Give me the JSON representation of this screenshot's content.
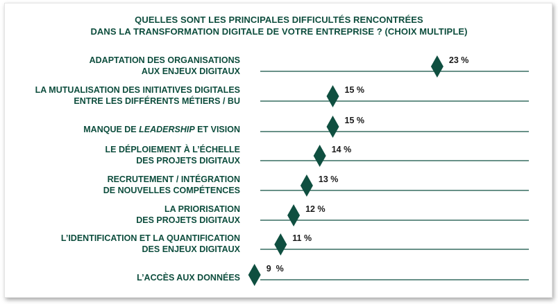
{
  "chart_data": {
    "type": "dot",
    "title_lines": [
      "QUELLES SONT LES PRINCIPALES DIFFICULTÉS RENCONTRÉES",
      "DANS LA TRANSFORMATION DIGITALE DE VOTRE ENTREPRISE ? (CHOIX MULTIPLE)"
    ],
    "categories": [
      [
        "ADAPTATION DES ORGANISATIONS",
        "AUX ENJEUX DIGITAUX"
      ],
      [
        "LA MUTUALISATION DES INITIATIVES DIGITALES",
        "ENTRE LES DIFFÉRENTS MÉTIERS / BU"
      ],
      [
        "MANQUE DE |LEADERSHIP| ET VISION"
      ],
      [
        "LE DÉPLOIEMENT À L’ÉCHELLE",
        "DES PROJETS DIGITAUX"
      ],
      [
        "RECRUTEMENT / INTÉGRATION",
        "DE NOUVELLES COMPÉTENCES"
      ],
      [
        "LA PRIORISATION",
        "DES PROJETS DIGITAUX"
      ],
      [
        "L’IDENTIFICATION ET LA QUANTIFICATION",
        "DES ENJEUX DIGITAUX"
      ],
      [
        "L’ACCÈS AUX DONNÉES"
      ]
    ],
    "values": [
      23,
      15,
      15,
      14,
      13,
      12,
      11,
      9
    ],
    "value_labels": [
      "23 %",
      "15 %",
      "15 %",
      "14 %",
      "13 %",
      "12 %",
      "11 %",
      "9  %"
    ],
    "unit": "%",
    "grid": false,
    "colors": {
      "marker": "#0f4f40",
      "line": "#0f4f40",
      "label": "#0d4d3d",
      "value": "#1a1a1a"
    }
  }
}
